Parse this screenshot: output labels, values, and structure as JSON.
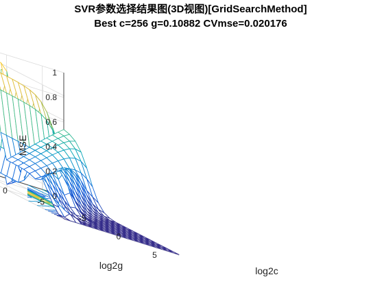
{
  "chart_data": {
    "type": "surface",
    "title": "SVR参数选择结果图(3D视图)[GridSearchMethod]",
    "subtitle": "Best c=256 g=0.10882 CVmse=0.020176",
    "xlabel": "log2c",
    "ylabel": "log2g",
    "zlabel": "MSE",
    "xlim": [
      -8,
      8
    ],
    "ylim": [
      -8,
      8
    ],
    "zlim": [
      0,
      1
    ],
    "x_ticks": [
      "-5",
      "0",
      "5"
    ],
    "y_ticks": [
      "5",
      "0",
      "-5"
    ],
    "z_ticks": [
      "0",
      "0.2",
      "0.4",
      "0.6",
      "0.8",
      "1"
    ],
    "grid": "on",
    "colormap": "parula",
    "contour_projection": "on",
    "best": {
      "log2c": 8,
      "log2g": -3.2,
      "mse": 0.020176
    }
  }
}
